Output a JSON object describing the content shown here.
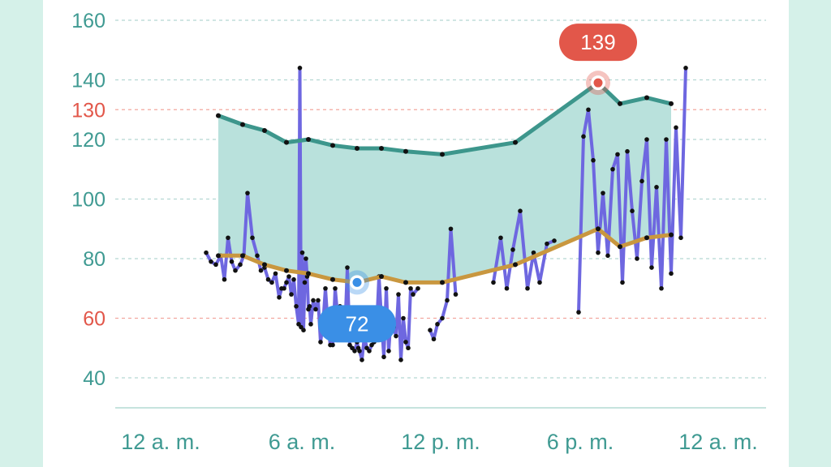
{
  "chart_data": {
    "type": "line",
    "y_ticks": [
      {
        "value": 160,
        "label": "160",
        "kind": "normal"
      },
      {
        "value": 140,
        "label": "140",
        "kind": "normal"
      },
      {
        "value": 130,
        "label": "130",
        "kind": "limit"
      },
      {
        "value": 120,
        "label": "120",
        "kind": "normal"
      },
      {
        "value": 100,
        "label": "100",
        "kind": "normal"
      },
      {
        "value": 80,
        "label": "80",
        "kind": "normal"
      },
      {
        "value": 60,
        "label": "60",
        "kind": "limit"
      },
      {
        "value": 40,
        "label": "40",
        "kind": "normal"
      }
    ],
    "x_ticks": [
      {
        "hour": 0,
        "label": "12 a. m."
      },
      {
        "hour": 6,
        "label": "6 a. m."
      },
      {
        "hour": 12,
        "label": "12 p. m."
      },
      {
        "hour": 18,
        "label": "6 p. m."
      },
      {
        "hour": 24,
        "label": "12 a. m."
      }
    ],
    "xlim": [
      0,
      24
    ],
    "ylim": [
      30,
      160
    ],
    "grid": true,
    "colors": {
      "normal_tick": "#3f9a92",
      "limit_tick": "#e2574a",
      "max_line": "#3d968c",
      "range_fill": "#b9e1dc",
      "avg_line": "#c9973f",
      "readings": "#6e67e0",
      "min_marker": "#3a8fe6",
      "max_marker": "#e2574a"
    },
    "max_series": {
      "x": [
        2.3,
        3.3,
        4.2,
        5.1,
        6.0,
        7.0,
        8.0,
        9.0,
        10.0,
        11.5,
        14.5,
        17.9,
        18.8,
        19.9,
        20.9
      ],
      "y": [
        128,
        125,
        123,
        119,
        120,
        118,
        117,
        117,
        116,
        115,
        119,
        139,
        132,
        134,
        132
      ]
    },
    "avg_series": {
      "x": [
        2.3,
        3.3,
        4.2,
        5.1,
        6.0,
        7.0,
        8.0,
        9.0,
        10.0,
        11.5,
        14.5,
        17.9,
        18.8,
        19.9,
        20.9
      ],
      "y": [
        81,
        81,
        78,
        76,
        75,
        73,
        72,
        74,
        72,
        72,
        78,
        90,
        84,
        87,
        88
      ]
    },
    "readings": [
      {
        "x": [
          1.8,
          2.0,
          2.2,
          2.4,
          2.55,
          2.7,
          2.85,
          3.0,
          3.2,
          3.35,
          3.5,
          3.7,
          3.9,
          4.05,
          4.2,
          4.35,
          4.5,
          4.65,
          4.8,
          4.9,
          5.0,
          5.1,
          5.2,
          5.3,
          5.4,
          5.5,
          5.6,
          5.65,
          5.7,
          5.75,
          5.8,
          5.85,
          5.9,
          5.95,
          6.0,
          6.05,
          6.1,
          6.2,
          6.3,
          6.4,
          6.5,
          6.6,
          6.7,
          6.8,
          6.9,
          7.0,
          7.1,
          7.2,
          7.3,
          7.4,
          7.5,
          7.6,
          7.7,
          7.8,
          7.9,
          8.0,
          8.05,
          8.1,
          8.2,
          8.3,
          8.4,
          8.5,
          8.6,
          8.7,
          8.8,
          8.9,
          9.0,
          9.1,
          9.2,
          9.3,
          9.4,
          9.5,
          9.6,
          9.7,
          9.8,
          9.9,
          10.0,
          10.1,
          10.2,
          10.3,
          10.5
        ],
        "y": [
          82,
          79,
          78,
          81,
          73,
          87,
          79,
          76,
          78,
          81,
          102,
          87,
          81,
          76,
          77,
          73,
          72,
          75,
          67,
          70,
          70,
          72,
          74,
          68,
          73,
          64,
          58,
          144,
          57,
          82,
          56,
          72,
          80,
          74,
          63,
          64,
          58,
          66,
          63,
          66,
          52,
          58,
          70,
          58,
          51,
          51,
          70,
          61,
          64,
          55,
          55,
          77,
          51,
          50,
          49,
          52,
          50,
          49,
          46,
          54,
          50,
          49,
          51,
          52,
          56,
          74,
          60,
          47,
          70,
          49,
          61,
          57,
          54,
          68,
          46,
          60,
          52,
          50,
          70,
          68,
          70
        ]
      },
      {
        "x": [
          11.0,
          11.15,
          11.3,
          11.5,
          11.7,
          11.85,
          12.05
        ],
        "y": [
          56,
          53,
          58,
          60,
          66,
          90,
          68
        ]
      },
      {
        "x": [
          13.6,
          13.9,
          14.15,
          14.4,
          14.7,
          15.0,
          15.25,
          15.5,
          15.8,
          16.1
        ],
        "y": [
          72,
          87,
          70,
          83,
          96,
          70,
          82,
          72,
          85,
          86
        ]
      },
      {
        "x": [
          17.1,
          17.3,
          17.5,
          17.7,
          17.9,
          18.1,
          18.3,
          18.5,
          18.7,
          18.9,
          19.1,
          19.3,
          19.5,
          19.7,
          19.9,
          20.1,
          20.3,
          20.5,
          20.7,
          20.9,
          21.1,
          21.3,
          21.5
        ],
        "y": [
          62,
          121,
          130,
          113,
          82,
          102,
          81,
          110,
          115,
          72,
          116,
          96,
          80,
          106,
          120,
          77,
          104,
          70,
          120,
          75,
          124,
          87,
          144
        ]
      }
    ],
    "annotations": [
      {
        "kind": "min",
        "x": 8.0,
        "y": 72,
        "label": "72"
      },
      {
        "kind": "max",
        "x": 17.9,
        "y": 139,
        "label": "139"
      }
    ]
  }
}
